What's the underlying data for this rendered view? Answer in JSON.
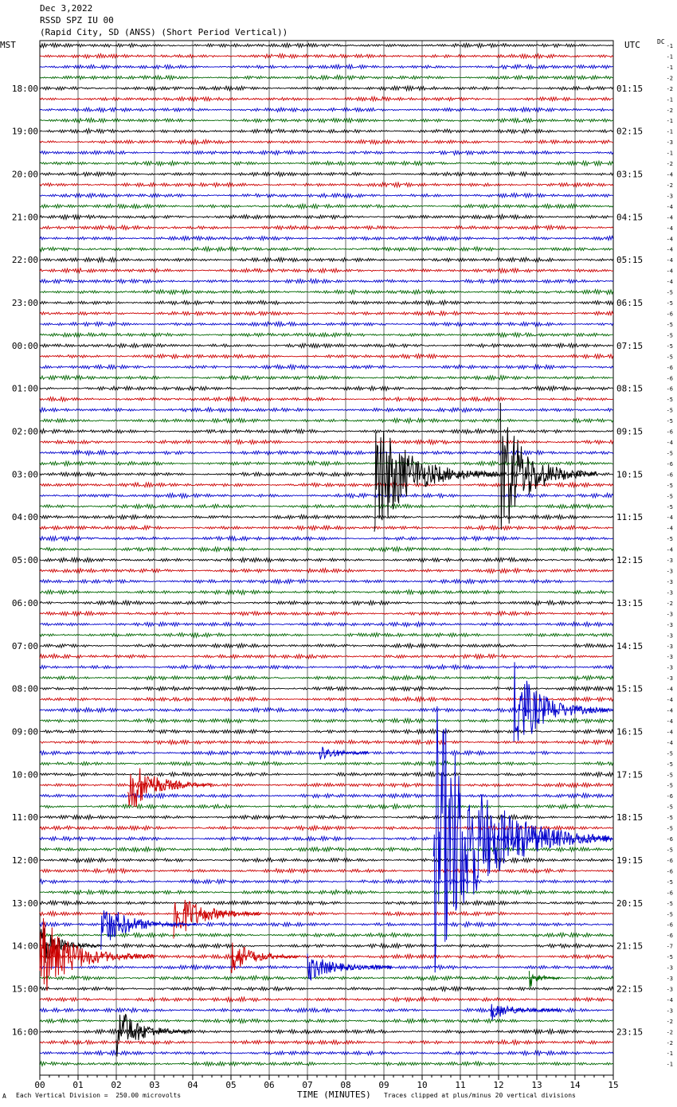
{
  "header": {
    "line1": "Dec 3,2022",
    "line2": "RSSD SPZ IU 00",
    "line3": "(Rapid City, SD (ANSS) (Short Period Vertical))"
  },
  "left_tz": "MST",
  "right_tz": "UTC",
  "dc_label": "DC",
  "footer": {
    "left_mark": "A",
    "scale_note": "Each Vertical Division =  250.00 microvolts",
    "axis_title": "TIME (MINUTES)",
    "clip_note": "Traces clipped at plus/minus 20 vertical divisions"
  },
  "chart_data": {
    "type": "line",
    "title": "RSSD SPZ IU 00",
    "xlabel": "TIME (MINUTES)",
    "xlim": [
      0,
      15
    ],
    "x_ticks": [
      "00",
      "01",
      "02",
      "03",
      "04",
      "05",
      "06",
      "07",
      "08",
      "09",
      "10",
      "11",
      "12",
      "13",
      "14",
      "15"
    ],
    "trace_colors": [
      "#000000",
      "#cc0000",
      "#0000cc",
      "#006600"
    ],
    "trace_count": 96,
    "left_labels": [
      "18:00",
      "19:00",
      "20:00",
      "21:00",
      "22:00",
      "23:00",
      "00:00",
      "01:00",
      "02:00",
      "03:00",
      "04:00",
      "05:00",
      "06:00",
      "07:00",
      "08:00",
      "09:00",
      "10:00",
      "11:00",
      "12:00",
      "13:00",
      "14:00",
      "15:00",
      "16:00"
    ],
    "right_labels": [
      "01:15",
      "02:15",
      "03:15",
      "04:15",
      "05:15",
      "06:15",
      "07:15",
      "08:15",
      "09:15",
      "10:15",
      "11:15",
      "12:15",
      "13:15",
      "14:15",
      "15:15",
      "16:15",
      "17:15",
      "18:15",
      "19:15",
      "20:15",
      "21:15",
      "22:15",
      "23:15"
    ],
    "dc_offsets": [
      "-1",
      "-1",
      "-1",
      "-2",
      "-2",
      "-1",
      "-2",
      "-1",
      "-1",
      "-3",
      "-1",
      "-2",
      "-4",
      "-2",
      "-3",
      "-4",
      "-4",
      "-4",
      "-4",
      "-4",
      "-4",
      "-4",
      "-4",
      "-5",
      "-5",
      "-6",
      "-5",
      "-5",
      "-5",
      "-5",
      "-6",
      "-6",
      "-6",
      "-5",
      "-5",
      "-5",
      "-6",
      "-4",
      "-5",
      "-6",
      "-6",
      "-5",
      "-5",
      "-5",
      "-4",
      "-4",
      "-5",
      "-4",
      "-3",
      "-3",
      "-3",
      "-3",
      "-2",
      "-3",
      "-3",
      "-3",
      "-3",
      "-3",
      "-3",
      "-3",
      "-4",
      "-4",
      "-4",
      "-4",
      "-4",
      "-4",
      "-5",
      "-5",
      "-5",
      "-5",
      "-6",
      "-5",
      "-5",
      "-5",
      "-6",
      "-5",
      "-6",
      "-6",
      "-5",
      "-6",
      "-5",
      "-5",
      "-6",
      "-6",
      "-7",
      "-5",
      "-3",
      "-3",
      "-3",
      "-4",
      "-3",
      "-2",
      "-2",
      "-2",
      "-1",
      "-1"
    ],
    "events": [
      {
        "trace": 40,
        "start": 8.75,
        "end": 12.0,
        "amplitude": 14,
        "color": "#000000"
      },
      {
        "trace": 40,
        "start": 12.05,
        "end": 14.6,
        "amplitude": 15,
        "color": "#000000"
      },
      {
        "trace": 62,
        "start": 12.4,
        "end": 15.0,
        "amplitude": 10,
        "color": "#0000cc"
      },
      {
        "trace": 66,
        "start": 7.3,
        "end": 8.6,
        "amplitude": 2,
        "color": "#0000cc"
      },
      {
        "trace": 69,
        "start": 2.3,
        "end": 4.5,
        "amplitude": 7,
        "color": "#cc0000"
      },
      {
        "trace": 74,
        "start": 10.3,
        "end": 15.0,
        "amplitude": 30,
        "color": "#0000cc"
      },
      {
        "trace": 81,
        "start": 3.5,
        "end": 5.8,
        "amplitude": 6,
        "color": "#cc0000"
      },
      {
        "trace": 82,
        "start": 1.6,
        "end": 4.1,
        "amplitude": 5,
        "color": "#0000cc"
      },
      {
        "trace": 84,
        "start": 0.0,
        "end": 1.6,
        "amplitude": 5,
        "color": "#000000"
      },
      {
        "trace": 85,
        "start": 0.0,
        "end": 3.0,
        "amplitude": 9,
        "color": "#cc0000"
      },
      {
        "trace": 85,
        "start": 5.0,
        "end": 6.8,
        "amplitude": 4,
        "color": "#cc0000"
      },
      {
        "trace": 86,
        "start": 7.0,
        "end": 9.2,
        "amplitude": 3,
        "color": "#0000cc"
      },
      {
        "trace": 87,
        "start": 12.8,
        "end": 13.6,
        "amplitude": 2,
        "color": "#006600"
      },
      {
        "trace": 90,
        "start": 11.8,
        "end": 13.6,
        "amplitude": 2,
        "color": "#0000cc"
      },
      {
        "trace": 92,
        "start": 2.0,
        "end": 4.0,
        "amplitude": 6,
        "color": "#000000"
      }
    ]
  }
}
